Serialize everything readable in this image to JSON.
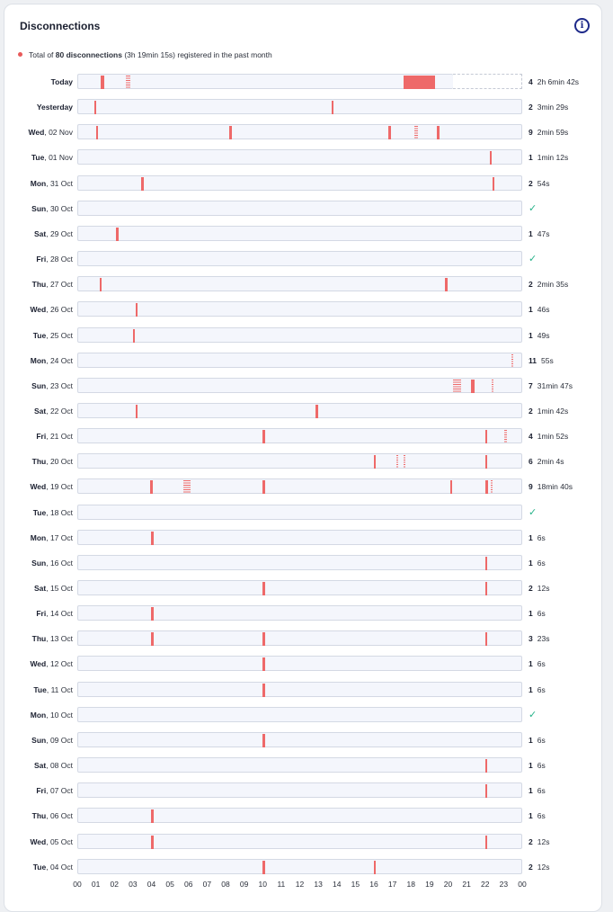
{
  "card": {
    "title": "Disconnections",
    "info_icon": "info-icon"
  },
  "summary": {
    "prefix": "Total of ",
    "count": "80 disconnections",
    "duration": " (3h 19min 15s)",
    "suffix": " registered in the past month"
  },
  "colors": {
    "event": "#ee6969",
    "ok": "#27b38a",
    "accent": "#1e2a8a"
  },
  "axis": {
    "hours": [
      "00",
      "01",
      "02",
      "03",
      "04",
      "05",
      "06",
      "07",
      "08",
      "09",
      "10",
      "11",
      "12",
      "13",
      "14",
      "15",
      "16",
      "17",
      "18",
      "19",
      "20",
      "21",
      "22",
      "23",
      "00"
    ]
  },
  "days": [
    {
      "bold": "Today",
      "rest": "",
      "count": "4",
      "duration": "2h 6min 42s",
      "today": true,
      "now_hour": 20.25,
      "events": [
        [
          1.2,
          0.22,
          false
        ],
        [
          2.55,
          0.25,
          true
        ],
        [
          17.55,
          1.7,
          false
        ]
      ]
    },
    {
      "bold": "Yesterday",
      "rest": "",
      "count": "2",
      "duration": "3min 29s",
      "events": [
        [
          0.85,
          0.12,
          false
        ],
        [
          13.65,
          0.14,
          false
        ]
      ]
    },
    {
      "bold": "Wed",
      "rest": ", 02 Nov",
      "count": "9",
      "duration": "2min 59s",
      "events": [
        [
          0.95,
          0.12,
          false
        ],
        [
          8.15,
          0.12,
          false
        ],
        [
          16.75,
          0.12,
          false
        ],
        [
          18.15,
          0.2,
          true
        ],
        [
          19.35,
          0.12,
          false
        ]
      ]
    },
    {
      "bold": "Tue",
      "rest": ", 01 Nov",
      "count": "1",
      "duration": "1min 12s",
      "events": [
        [
          22.2,
          0.12,
          false
        ]
      ]
    },
    {
      "bold": "Mon",
      "rest": ", 31 Oct",
      "count": "2",
      "duration": "54s",
      "events": [
        [
          3.4,
          0.12,
          false
        ],
        [
          22.35,
          0.12,
          false
        ]
      ]
    },
    {
      "bold": "Sun",
      "rest": ", 30 Oct",
      "ok": true,
      "events": []
    },
    {
      "bold": "Sat",
      "rest": ", 29 Oct",
      "count": "1",
      "duration": "47s",
      "events": [
        [
          2.05,
          0.12,
          false
        ]
      ]
    },
    {
      "bold": "Fri",
      "rest": ", 28 Oct",
      "ok": true,
      "events": []
    },
    {
      "bold": "Thu",
      "rest": ", 27 Oct",
      "count": "2",
      "duration": "2min 35s",
      "events": [
        [
          1.15,
          0.12,
          false
        ],
        [
          19.8,
          0.14,
          false
        ]
      ]
    },
    {
      "bold": "Wed",
      "rest": ", 26 Oct",
      "count": "1",
      "duration": "46s",
      "events": [
        [
          3.1,
          0.12,
          false
        ]
      ]
    },
    {
      "bold": "Tue",
      "rest": ", 25 Oct",
      "count": "1",
      "duration": "49s",
      "events": [
        [
          2.95,
          0.12,
          false
        ]
      ]
    },
    {
      "bold": "Mon",
      "rest": ", 24 Oct",
      "count": "11",
      "duration": "55s",
      "events": [
        [
          23.35,
          0.12,
          true
        ]
      ]
    },
    {
      "bold": "Sun",
      "rest": ", 23 Oct",
      "count": "7",
      "duration": "31min 47s",
      "events": [
        [
          20.2,
          0.45,
          true
        ],
        [
          21.2,
          0.18,
          false
        ],
        [
          22.3,
          0.1,
          true
        ]
      ]
    },
    {
      "bold": "Sat",
      "rest": ", 22 Oct",
      "count": "2",
      "duration": "1min 42s",
      "events": [
        [
          3.1,
          0.12,
          false
        ],
        [
          12.8,
          0.12,
          false
        ]
      ]
    },
    {
      "bold": "Fri",
      "rest": ", 21 Oct",
      "count": "4",
      "duration": "1min 52s",
      "events": [
        [
          9.95,
          0.12,
          false
        ],
        [
          21.95,
          0.12,
          false
        ],
        [
          23.0,
          0.1,
          true
        ]
      ]
    },
    {
      "bold": "Thu",
      "rest": ", 20 Oct",
      "count": "6",
      "duration": "2min 4s",
      "events": [
        [
          15.95,
          0.12,
          false
        ],
        [
          17.15,
          0.08,
          true
        ],
        [
          17.55,
          0.08,
          true
        ],
        [
          21.95,
          0.12,
          false
        ]
      ]
    },
    {
      "bold": "Wed",
      "rest": ", 19 Oct",
      "count": "9",
      "duration": "18min 40s",
      "events": [
        [
          3.9,
          0.12,
          false
        ],
        [
          5.65,
          0.4,
          true
        ],
        [
          9.95,
          0.12,
          false
        ],
        [
          20.05,
          0.12,
          false
        ],
        [
          21.95,
          0.14,
          false
        ],
        [
          22.25,
          0.1,
          true
        ]
      ]
    },
    {
      "bold": "Tue",
      "rest": ", 18 Oct",
      "ok": true,
      "events": []
    },
    {
      "bold": "Mon",
      "rest": ", 17 Oct",
      "count": "1",
      "duration": "6s",
      "events": [
        [
          3.95,
          0.12,
          false
        ]
      ]
    },
    {
      "bold": "Sun",
      "rest": ", 16 Oct",
      "count": "1",
      "duration": "6s",
      "events": [
        [
          21.95,
          0.12,
          false
        ]
      ]
    },
    {
      "bold": "Sat",
      "rest": ", 15 Oct",
      "count": "2",
      "duration": "12s",
      "events": [
        [
          9.95,
          0.12,
          false
        ],
        [
          21.95,
          0.12,
          false
        ]
      ]
    },
    {
      "bold": "Fri",
      "rest": ", 14 Oct",
      "count": "1",
      "duration": "6s",
      "events": [
        [
          3.95,
          0.12,
          false
        ]
      ]
    },
    {
      "bold": "Thu",
      "rest": ", 13 Oct",
      "count": "3",
      "duration": "23s",
      "events": [
        [
          3.95,
          0.12,
          false
        ],
        [
          9.95,
          0.12,
          false
        ],
        [
          21.95,
          0.12,
          false
        ]
      ]
    },
    {
      "bold": "Wed",
      "rest": ", 12 Oct",
      "count": "1",
      "duration": "6s",
      "events": [
        [
          9.95,
          0.12,
          false
        ]
      ]
    },
    {
      "bold": "Tue",
      "rest": ", 11 Oct",
      "count": "1",
      "duration": "6s",
      "events": [
        [
          9.95,
          0.12,
          false
        ]
      ]
    },
    {
      "bold": "Mon",
      "rest": ", 10 Oct",
      "ok": true,
      "events": []
    },
    {
      "bold": "Sun",
      "rest": ", 09 Oct",
      "count": "1",
      "duration": "6s",
      "events": [
        [
          9.95,
          0.12,
          false
        ]
      ]
    },
    {
      "bold": "Sat",
      "rest": ", 08 Oct",
      "count": "1",
      "duration": "6s",
      "events": [
        [
          21.95,
          0.12,
          false
        ]
      ]
    },
    {
      "bold": "Fri",
      "rest": ", 07 Oct",
      "count": "1",
      "duration": "6s",
      "events": [
        [
          21.95,
          0.12,
          false
        ]
      ]
    },
    {
      "bold": "Thu",
      "rest": ", 06 Oct",
      "count": "1",
      "duration": "6s",
      "events": [
        [
          3.95,
          0.12,
          false
        ]
      ]
    },
    {
      "bold": "Wed",
      "rest": ", 05 Oct",
      "count": "2",
      "duration": "12s",
      "events": [
        [
          3.95,
          0.12,
          false
        ],
        [
          21.95,
          0.12,
          false
        ]
      ]
    },
    {
      "bold": "Tue",
      "rest": ", 04 Oct",
      "count": "2",
      "duration": "12s",
      "events": [
        [
          9.95,
          0.12,
          false
        ],
        [
          15.95,
          0.12,
          false
        ]
      ]
    }
  ]
}
